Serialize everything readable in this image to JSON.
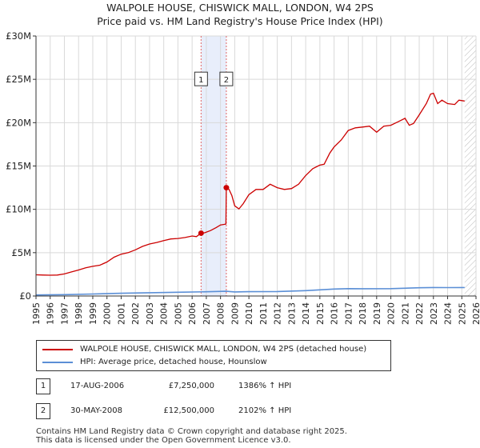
{
  "chart_data": {
    "type": "line",
    "title": "WALPOLE HOUSE, CHISWICK MALL, LONDON, W4 2PS",
    "subtitle": "Price paid vs. HM Land Registry's House Price Index (HPI)",
    "xlabel": "",
    "ylabel": "",
    "xlim": [
      1995,
      2026
    ],
    "ylim": [
      0,
      30000000
    ],
    "x_ticks": [
      "1995",
      "1996",
      "1997",
      "1998",
      "1999",
      "2000",
      "2001",
      "2002",
      "2003",
      "2004",
      "2005",
      "2006",
      "2007",
      "2008",
      "2009",
      "2010",
      "2011",
      "2012",
      "2013",
      "2014",
      "2015",
      "2016",
      "2017",
      "2018",
      "2019",
      "2020",
      "2021",
      "2022",
      "2023",
      "2024",
      "2025",
      "2026"
    ],
    "y_ticks": [
      {
        "value": 0,
        "label": "£0"
      },
      {
        "value": 5000000,
        "label": "£5M"
      },
      {
        "value": 10000000,
        "label": "£10M"
      },
      {
        "value": 15000000,
        "label": "£15M"
      },
      {
        "value": 20000000,
        "label": "£20M"
      },
      {
        "value": 25000000,
        "label": "£25M"
      },
      {
        "value": 30000000,
        "label": "£30M"
      }
    ],
    "grid": true,
    "highlight_band": {
      "x_start": 2006.63,
      "x_end": 2008.41
    },
    "future_hatch_start": 2025.2,
    "series": [
      {
        "name": "WALPOLE HOUSE, CHISWICK MALL, LONDON, W4 2PS (detached house)",
        "color": "#cc0000",
        "points": [
          [
            1995.0,
            2450000
          ],
          [
            1995.5,
            2420000
          ],
          [
            1996.0,
            2400000
          ],
          [
            1996.5,
            2420000
          ],
          [
            1997.0,
            2550000
          ],
          [
            1997.5,
            2780000
          ],
          [
            1998.0,
            3000000
          ],
          [
            1998.5,
            3250000
          ],
          [
            1999.0,
            3420000
          ],
          [
            1999.5,
            3550000
          ],
          [
            2000.0,
            3920000
          ],
          [
            2000.5,
            4480000
          ],
          [
            2001.0,
            4830000
          ],
          [
            2001.5,
            5000000
          ],
          [
            2002.0,
            5330000
          ],
          [
            2002.5,
            5720000
          ],
          [
            2003.0,
            6000000
          ],
          [
            2003.5,
            6180000
          ],
          [
            2004.0,
            6400000
          ],
          [
            2004.5,
            6580000
          ],
          [
            2005.0,
            6640000
          ],
          [
            2005.5,
            6750000
          ],
          [
            2006.0,
            6920000
          ],
          [
            2006.3,
            6850000
          ],
          [
            2006.63,
            7250000
          ],
          [
            2006.9,
            7300000
          ],
          [
            2007.3,
            7550000
          ],
          [
            2007.7,
            7900000
          ],
          [
            2008.0,
            8200000
          ],
          [
            2008.38,
            8300000
          ],
          [
            2008.41,
            12500000
          ],
          [
            2008.6,
            12300000
          ],
          [
            2008.8,
            11600000
          ],
          [
            2009.0,
            10400000
          ],
          [
            2009.3,
            10050000
          ],
          [
            2009.6,
            10650000
          ],
          [
            2010.0,
            11700000
          ],
          [
            2010.5,
            12300000
          ],
          [
            2011.0,
            12300000
          ],
          [
            2011.5,
            12900000
          ],
          [
            2012.0,
            12500000
          ],
          [
            2012.5,
            12300000
          ],
          [
            2013.0,
            12400000
          ],
          [
            2013.5,
            12900000
          ],
          [
            2014.0,
            13900000
          ],
          [
            2014.5,
            14700000
          ],
          [
            2015.0,
            15100000
          ],
          [
            2015.3,
            15200000
          ],
          [
            2015.7,
            16500000
          ],
          [
            2016.0,
            17200000
          ],
          [
            2016.5,
            18000000
          ],
          [
            2017.0,
            19100000
          ],
          [
            2017.5,
            19400000
          ],
          [
            2018.0,
            19500000
          ],
          [
            2018.5,
            19600000
          ],
          [
            2019.0,
            18900000
          ],
          [
            2019.5,
            19600000
          ],
          [
            2020.0,
            19700000
          ],
          [
            2020.5,
            20100000
          ],
          [
            2021.0,
            20500000
          ],
          [
            2021.3,
            19700000
          ],
          [
            2021.6,
            19900000
          ],
          [
            2022.0,
            20900000
          ],
          [
            2022.5,
            22200000
          ],
          [
            2022.8,
            23300000
          ],
          [
            2023.0,
            23400000
          ],
          [
            2023.3,
            22200000
          ],
          [
            2023.6,
            22600000
          ],
          [
            2024.0,
            22200000
          ],
          [
            2024.5,
            22100000
          ],
          [
            2024.8,
            22600000
          ],
          [
            2025.2,
            22500000
          ]
        ]
      },
      {
        "name": "HPI: Average price, detached house, Hounslow",
        "color": "#5b8fd6",
        "points": [
          [
            1995.0,
            120000
          ],
          [
            1997.0,
            160000
          ],
          [
            1999.0,
            230000
          ],
          [
            2001.0,
            310000
          ],
          [
            2003.0,
            380000
          ],
          [
            2005.0,
            430000
          ],
          [
            2007.0,
            490000
          ],
          [
            2008.4,
            540000
          ],
          [
            2009.0,
            470000
          ],
          [
            2010.0,
            500000
          ],
          [
            2012.0,
            520000
          ],
          [
            2014.0,
            620000
          ],
          [
            2016.0,
            800000
          ],
          [
            2017.0,
            850000
          ],
          [
            2018.0,
            840000
          ],
          [
            2020.0,
            850000
          ],
          [
            2022.0,
            950000
          ],
          [
            2023.0,
            980000
          ],
          [
            2024.0,
            970000
          ],
          [
            2025.2,
            980000
          ]
        ]
      }
    ],
    "markers": [
      {
        "label": "1",
        "x": 2006.63,
        "y": 7250000,
        "badge_value": 25000000
      },
      {
        "label": "2",
        "x": 2008.41,
        "y": 12500000,
        "badge_value": 25000000
      }
    ]
  },
  "legend": {
    "items": [
      {
        "label": "WALPOLE HOUSE, CHISWICK MALL, LONDON, W4 2PS (detached house)",
        "color": "#cc0000"
      },
      {
        "label": "HPI: Average price, detached house, Hounslow",
        "color": "#5b8fd6"
      }
    ]
  },
  "transactions": [
    {
      "badge": "1",
      "date": "17-AUG-2006",
      "price": "£7,250,000",
      "hpi": "1386% ↑ HPI"
    },
    {
      "badge": "2",
      "date": "30-MAY-2008",
      "price": "£12,500,000",
      "hpi": "2102% ↑ HPI"
    }
  ],
  "footer": {
    "line1": "Contains HM Land Registry data © Crown copyright and database right 2025.",
    "line2": "This data is licensed under the Open Government Licence v3.0."
  }
}
